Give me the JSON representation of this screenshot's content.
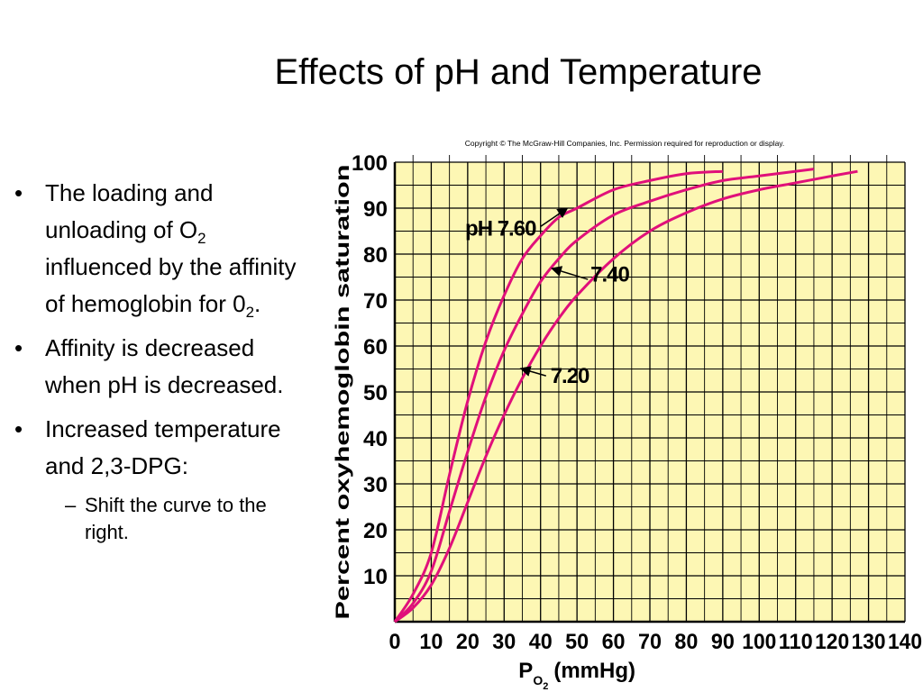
{
  "slide": {
    "title": "Effects of pH and Temperature"
  },
  "bullets": {
    "b1_a": "The loading and unloading of O",
    "b1_sub1": "2",
    "b1_b": " influenced by the affinity of hemoglobin for 0",
    "b1_sub2": "2",
    "b1_c": ".",
    "b2": "Affinity is decreased when pH is decreased.",
    "b3": "Increased temperature and 2,3-DPG:",
    "b3_sub": "Shift the curve to the right."
  },
  "chart_data": {
    "type": "line",
    "copyright": "Copyright © The McGraw-Hill Companies, Inc. Permission required for reproduction or display.",
    "xlabel_main": "P",
    "xlabel_sub": "O",
    "xlabel_subsub": "2",
    "xlabel_unit": "(mmHg)",
    "ylabel": "Percent oxyhemoglobin saturation",
    "xlim": [
      0,
      140
    ],
    "ylim": [
      0,
      100
    ],
    "x_ticks": [
      0,
      10,
      20,
      30,
      40,
      50,
      60,
      70,
      80,
      90,
      100,
      110,
      120,
      130,
      140
    ],
    "y_ticks": [
      10,
      20,
      30,
      40,
      50,
      60,
      70,
      80,
      90,
      100
    ],
    "grid": true,
    "background": "#fdf7b4",
    "grid_color": "#000000",
    "curve_color": "#e0107a",
    "series": [
      {
        "name": "pH 7.60",
        "label_text": "pH 7.60",
        "x": [
          0,
          5,
          10,
          15,
          20,
          25,
          30,
          35,
          40,
          45,
          50,
          60,
          70,
          80,
          90
        ],
        "y": [
          0,
          6,
          15,
          32,
          48,
          61,
          71,
          79,
          84,
          88,
          90,
          94,
          96,
          97.5,
          98
        ]
      },
      {
        "name": "7.40",
        "label_text": "7.40",
        "x": [
          0,
          5,
          10,
          15,
          20,
          25,
          30,
          35,
          40,
          45,
          50,
          60,
          70,
          80,
          90,
          100,
          115
        ],
        "y": [
          0,
          4,
          11,
          24,
          37,
          49,
          59,
          67,
          74,
          79,
          83,
          88.5,
          91.5,
          94,
          96,
          97,
          98.5
        ]
      },
      {
        "name": "7.20",
        "label_text": "7.20",
        "x": [
          0,
          5,
          10,
          15,
          20,
          25,
          30,
          35,
          40,
          45,
          50,
          60,
          70,
          80,
          90,
          100,
          110,
          120,
          127
        ],
        "y": [
          0,
          3,
          8,
          16,
          26,
          36,
          45,
          53,
          60,
          66,
          71,
          79,
          85,
          89,
          92,
          94,
          95.5,
          97,
          98
        ]
      }
    ]
  }
}
